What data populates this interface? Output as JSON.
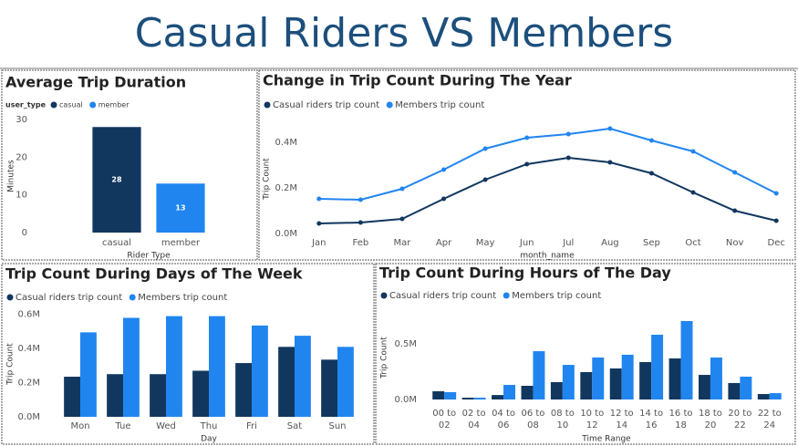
{
  "title": "Casual Riders VS Members",
  "chart_data": [
    {
      "type": "bar",
      "title": "Average Trip Duration",
      "legend_title": "user_type",
      "categories": [
        "casual",
        "member"
      ],
      "values": [
        28,
        13
      ],
      "colors": [
        "#12375f",
        "#2185f0"
      ],
      "ylim": [
        0,
        30
      ],
      "yticks": [
        0,
        10,
        20,
        30
      ],
      "ylabel": "Minutes",
      "xlabel": "Rider Type"
    },
    {
      "type": "line",
      "title": "Change in Trip Count During The Year",
      "categories": [
        "Jan",
        "Feb",
        "Mar",
        "Apr",
        "May",
        "Jun",
        "Jul",
        "Aug",
        "Sep",
        "Oct",
        "Nov",
        "Dec"
      ],
      "series": [
        {
          "name": "Casual riders trip count",
          "color": "#12375f",
          "values": [
            44000,
            48000,
            64000,
            152000,
            236000,
            304000,
            332000,
            312000,
            264000,
            180000,
            100000,
            56000
          ]
        },
        {
          "name": "Members trip count",
          "color": "#2185f0",
          "values": [
            152000,
            148000,
            196000,
            280000,
            372000,
            420000,
            436000,
            460000,
            408000,
            360000,
            268000,
            176000
          ]
        }
      ],
      "ylim": [
        0,
        480000
      ],
      "yticks": [
        {
          "value": 0,
          "label": "0.0M"
        },
        {
          "value": 200000,
          "label": "0.2M"
        },
        {
          "value": 400000,
          "label": "0.4M"
        }
      ],
      "ylabel": "Trip Count",
      "xlabel": "month_name"
    },
    {
      "type": "grouped_bar",
      "title": "Trip Count During Days of The Week",
      "categories": [
        "Mon",
        "Tue",
        "Wed",
        "Thu",
        "Fri",
        "Sat",
        "Sun"
      ],
      "series": [
        {
          "name": "Casual riders trip count",
          "color": "#12375f",
          "values": [
            235000,
            250000,
            250000,
            270000,
            315000,
            410000,
            335000
          ]
        },
        {
          "name": "Members trip count",
          "color": "#2185f0",
          "values": [
            495000,
            580000,
            590000,
            590000,
            535000,
            475000,
            410000
          ]
        }
      ],
      "ylim": [
        0,
        620000
      ],
      "yticks": [
        {
          "value": 0,
          "label": "0.0M"
        },
        {
          "value": 200000,
          "label": "0.2M"
        },
        {
          "value": 400000,
          "label": "0.4M"
        },
        {
          "value": 600000,
          "label": "0.6M"
        }
      ],
      "ylabel": "Trip Count",
      "xlabel": "Day"
    },
    {
      "type": "grouped_bar",
      "title": "Trip Count During Hours of The Day",
      "categories": [
        "00 to 02",
        "02 to 04",
        "04 to 06",
        "06 to 08",
        "08 to 10",
        "10 to 12",
        "12 to 14",
        "14 to 16",
        "16 to 18",
        "18 to 20",
        "20 to 22",
        "22 to 24"
      ],
      "series": [
        {
          "name": "Casual riders trip count",
          "color": "#12375f",
          "values": [
            74000,
            16000,
            40000,
            123000,
            156000,
            246000,
            279000,
            336000,
            369000,
            221000,
            148000,
            49000
          ]
        },
        {
          "name": "Members trip count",
          "color": "#2185f0",
          "values": [
            66000,
            16000,
            131000,
            434000,
            311000,
            377000,
            402000,
            582000,
            705000,
            377000,
            205000,
            57000
          ]
        }
      ],
      "ylim": [
        0,
        750000
      ],
      "yticks": [
        {
          "value": 0,
          "label": "0.0M"
        },
        {
          "value": 500000,
          "label": "0.5M"
        }
      ],
      "ylabel": "Trip Count",
      "xlabel": "Time Range"
    }
  ]
}
